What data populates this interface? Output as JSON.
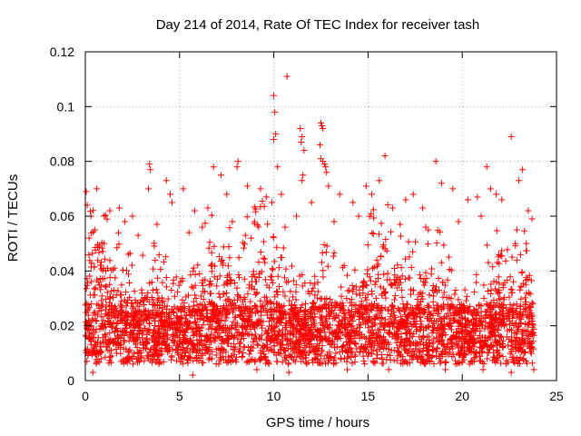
{
  "chart_data": {
    "type": "scatter",
    "title": "Day 214 of 2014, Rate Of TEC Index for receiver tash",
    "xlabel": "GPS time / hours",
    "ylabel": "ROTI / TECUs",
    "xlim": [
      0,
      25
    ],
    "ylim": [
      0,
      0.12
    ],
    "xticks": [
      0,
      5,
      10,
      15,
      20,
      25
    ],
    "yticks": [
      0,
      0.02,
      0.04,
      0.06,
      0.08,
      0.1,
      0.12
    ],
    "xtick_labels": [
      "0",
      "5",
      "10",
      "15",
      "20",
      "25"
    ],
    "ytick_labels": [
      "0",
      "0.02",
      "0.04",
      "0.06",
      "0.08",
      "0.1",
      "0.12"
    ],
    "grid": true,
    "legend": "none",
    "marker": "+",
    "series_color": "#ff0000",
    "grid_color": "#a0a0a0",
    "density": {
      "x_range": [
        0,
        23.8
      ],
      "y_range": [
        0.003,
        0.07
      ],
      "points_per_hour": 150
    },
    "series": [
      {
        "name": "ROTI",
        "points": [
          [
            0.05,
            0.069
          ],
          [
            0.1,
            0.064
          ],
          [
            0.3,
            0.06
          ],
          [
            1.3,
            0.062
          ],
          [
            1.8,
            0.063
          ],
          [
            2.1,
            0.058
          ],
          [
            2.5,
            0.06
          ],
          [
            3.4,
            0.079
          ],
          [
            3.45,
            0.077
          ],
          [
            3.35,
            0.07
          ],
          [
            4.3,
            0.073
          ],
          [
            4.5,
            0.068
          ],
          [
            4.6,
            0.065
          ],
          [
            5.2,
            0.07
          ],
          [
            5.8,
            0.062
          ],
          [
            6.5,
            0.063
          ],
          [
            6.8,
            0.078
          ],
          [
            7.2,
            0.075
          ],
          [
            7.5,
            0.068
          ],
          [
            8.1,
            0.08
          ],
          [
            8.05,
            0.078
          ],
          [
            8.6,
            0.071
          ],
          [
            9.3,
            0.07
          ],
          [
            9.6,
            0.067
          ],
          [
            9.9,
            0.065
          ],
          [
            10.0,
            0.104
          ],
          [
            10.05,
            0.098
          ],
          [
            10.1,
            0.09
          ],
          [
            10.0,
            0.088
          ],
          [
            10.2,
            0.078
          ],
          [
            10.4,
            0.068
          ],
          [
            10.7,
            0.111
          ],
          [
            11.2,
            0.06
          ],
          [
            11.4,
            0.092
          ],
          [
            11.5,
            0.089
          ],
          [
            11.45,
            0.087
          ],
          [
            11.6,
            0.084
          ],
          [
            11.55,
            0.075
          ],
          [
            11.5,
            0.073
          ],
          [
            12.0,
            0.065
          ],
          [
            12.5,
            0.094
          ],
          [
            12.55,
            0.093
          ],
          [
            12.6,
            0.092
          ],
          [
            12.45,
            0.086
          ],
          [
            12.5,
            0.081
          ],
          [
            12.6,
            0.08
          ],
          [
            12.7,
            0.079
          ],
          [
            12.75,
            0.078
          ],
          [
            12.8,
            0.076
          ],
          [
            12.9,
            0.071
          ],
          [
            13.5,
            0.068
          ],
          [
            14.2,
            0.065
          ],
          [
            14.9,
            0.071
          ],
          [
            15.2,
            0.068
          ],
          [
            15.6,
            0.073
          ],
          [
            15.9,
            0.082
          ],
          [
            16.3,
            0.063
          ],
          [
            17.0,
            0.066
          ],
          [
            17.4,
            0.068
          ],
          [
            17.9,
            0.063
          ],
          [
            18.6,
            0.08
          ],
          [
            18.9,
            0.072
          ],
          [
            19.5,
            0.07
          ],
          [
            20.3,
            0.066
          ],
          [
            20.8,
            0.067
          ],
          [
            21.3,
            0.078
          ],
          [
            21.5,
            0.07
          ],
          [
            21.8,
            0.068
          ],
          [
            22.1,
            0.066
          ],
          [
            22.6,
            0.089
          ],
          [
            23.0,
            0.073
          ],
          [
            23.2,
            0.077
          ],
          [
            23.5,
            0.062
          ],
          [
            23.7,
            0.059
          ],
          [
            0.2,
            0.052
          ],
          [
            0.5,
            0.055
          ],
          [
            1.0,
            0.05
          ],
          [
            2.8,
            0.053
          ],
          [
            3.8,
            0.057
          ],
          [
            5.5,
            0.054
          ],
          [
            6.2,
            0.056
          ],
          [
            7.8,
            0.058
          ],
          [
            8.8,
            0.052
          ],
          [
            10.6,
            0.056
          ],
          [
            13.2,
            0.058
          ],
          [
            14.5,
            0.06
          ],
          [
            16.7,
            0.057
          ],
          [
            18.2,
            0.055
          ],
          [
            19.8,
            0.058
          ],
          [
            21.0,
            0.06
          ],
          [
            22.9,
            0.055
          ],
          [
            23.4,
            0.05
          ],
          [
            0.4,
            0.003
          ],
          [
            5.7,
            0.002
          ],
          [
            9.1,
            0.004
          ],
          [
            10.8,
            0.003
          ],
          [
            13.9,
            0.004
          ],
          [
            16.1,
            0.004
          ],
          [
            19.1,
            0.004
          ],
          [
            21.1,
            0.004
          ],
          [
            22.6,
            0.003
          ],
          [
            23.8,
            0.004
          ]
        ]
      }
    ]
  }
}
